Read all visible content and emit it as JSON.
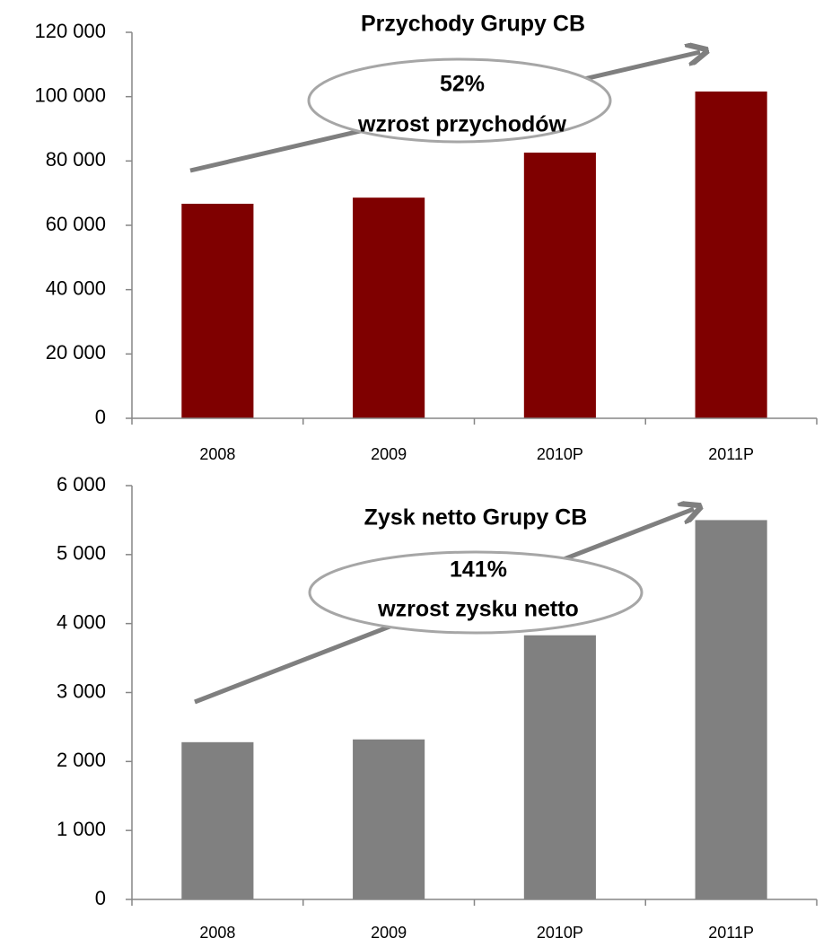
{
  "chart_data": [
    {
      "type": "bar",
      "title": "Przychody Grupy CB",
      "annotations": [
        "52%",
        "wzrost przychodów"
      ],
      "categories": [
        "2008",
        "2009",
        "2010P",
        "2011P"
      ],
      "values": [
        66700,
        68600,
        82600,
        101600
      ],
      "color": "#7f0000",
      "ylim": [
        0,
        120000
      ],
      "yticks": [
        0,
        {
          "value": 20000,
          "label": "20 000"
        },
        {
          "value": 40000,
          "label": "40 000"
        },
        {
          "value": 60000,
          "label": "60 000"
        },
        {
          "value": 80000,
          "label": "80 000"
        },
        {
          "value": 100000,
          "label": "100 000"
        },
        {
          "value": 120000,
          "label": "120 000"
        }
      ]
    },
    {
      "type": "bar",
      "title": "Zysk netto Grupy CB",
      "annotations": [
        "141%",
        "wzrost zysku netto"
      ],
      "categories": [
        "2008",
        "2009",
        "2010P",
        "2011P"
      ],
      "values": [
        2280,
        2320,
        3830,
        5500
      ],
      "color": "#808080",
      "ylim": [
        0,
        6000
      ],
      "yticks": [
        0,
        {
          "value": 1000,
          "label": "1 000"
        },
        {
          "value": 2000,
          "label": "2 000"
        },
        {
          "value": 3000,
          "label": "3 000"
        },
        {
          "value": 4000,
          "label": "4 000"
        },
        {
          "value": 5000,
          "label": "5 000"
        },
        {
          "value": 6000,
          "label": "6 000"
        }
      ]
    }
  ]
}
